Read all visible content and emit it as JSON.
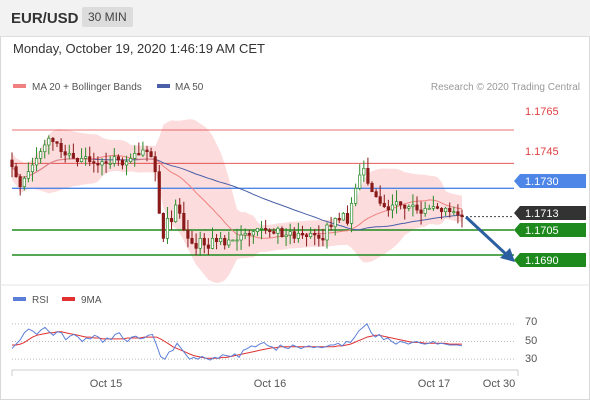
{
  "header": {
    "symbol": "EUR/USD",
    "timeframe": "30 MIN"
  },
  "datetime": "Monday, October 19, 2020 1:46:19 AM CET",
  "legend": {
    "ma20": "MA 20 + Bollinger Bands",
    "ma50": "MA 50",
    "copyright": "Research © 2020 Trading Central"
  },
  "colors": {
    "ma20": "#f08080",
    "ma50": "#4a5fa8",
    "band": "#fbd6d6",
    "blue_level": "#4e86e8",
    "green_level": "#1e8a1e",
    "red_level": "#e04040",
    "last_price": "#333333",
    "up_candle": "#2a8a2a",
    "down_candle": "#8a1a1a",
    "rsi": "#5b7fd8",
    "rsi_ma": "#e03030",
    "arrow": "#2c5fa0"
  },
  "price_tags": {
    "r1": "1.1765",
    "r2": "1.1745",
    "r3": "1.1730",
    "last": "1.1713",
    "s1": "1.1705",
    "s2": "1.1690"
  },
  "rsi_legend": {
    "rsi": "RSI",
    "ma": "9MA"
  },
  "rsi_ticks": [
    "70",
    "50",
    "30"
  ],
  "x_ticks": [
    "Oct 15",
    "Oct 16",
    "Oct 17",
    "Oct 30"
  ],
  "chart_data": {
    "type": "candlestick",
    "instrument": "EUR/USD",
    "timeframe": "30 MIN",
    "ylim": [
      1.1678,
      1.1786
    ],
    "levels": [
      {
        "value": 1.1765,
        "kind": "resistance"
      },
      {
        "value": 1.1745,
        "kind": "resistance"
      },
      {
        "value": 1.173,
        "kind": "pivot"
      },
      {
        "value": 1.1713,
        "kind": "last"
      },
      {
        "value": 1.1705,
        "kind": "support"
      },
      {
        "value": 1.169,
        "kind": "support"
      }
    ],
    "closes": [
      1.1743,
      1.1737,
      1.1731,
      1.1736,
      1.174,
      1.1744,
      1.1748,
      1.1752,
      1.1756,
      1.176,
      1.1758,
      1.1757,
      1.1752,
      1.175,
      1.1751,
      1.1748,
      1.1746,
      1.1748,
      1.1749,
      1.1746,
      1.1745,
      1.1744,
      1.1746,
      1.1745,
      1.1745,
      1.1749,
      1.1747,
      1.1744,
      1.1746,
      1.1748,
      1.1751,
      1.175,
      1.1753,
      1.1752,
      1.1749,
      1.174,
      1.1715,
      1.17,
      1.1712,
      1.171,
      1.172,
      1.1715,
      1.1705,
      1.17,
      1.1697,
      1.1694,
      1.17,
      1.1696,
      1.1694,
      1.17,
      1.1698,
      1.17,
      1.1696,
      1.1699,
      1.1699,
      1.1699,
      1.1702,
      1.1703,
      1.1702,
      1.1704,
      1.1706,
      1.1706,
      1.1705,
      1.1704,
      1.1703,
      1.1706,
      1.1701,
      1.1702,
      1.1704,
      1.17,
      1.1703,
      1.1702,
      1.1701,
      1.1703,
      1.1702,
      1.17,
      1.1699,
      1.1708,
      1.1707,
      1.1712,
      1.1711,
      1.1715,
      1.1709,
      1.1721,
      1.173,
      1.1738,
      1.1742,
      1.1733,
      1.1728,
      1.1725,
      1.1721,
      1.1719,
      1.1717,
      1.172,
      1.1722,
      1.172,
      1.1718,
      1.1719,
      1.172,
      1.1717,
      1.1715,
      1.1718,
      1.1718,
      1.1719,
      1.1718,
      1.1716,
      1.1718,
      1.1716,
      1.1716,
      1.1714,
      1.1713
    ],
    "ma20_end": 1.172,
    "ma50_end": 1.1716,
    "forecast_arrow": {
      "from": 1.1713,
      "to": 1.169
    },
    "x_labels": [
      "Oct 15",
      "Oct 16",
      "Oct 17",
      "Oct 30"
    ],
    "rsi": {
      "ylim": [
        20,
        80
      ],
      "ticks": [
        70,
        50,
        30
      ],
      "rsi_values": [
        42,
        47,
        52,
        60,
        64,
        62,
        58,
        63,
        66,
        61,
        57,
        61,
        60,
        52,
        56,
        58,
        55,
        50,
        54,
        53,
        57,
        55,
        49,
        54,
        52,
        58,
        60,
        53,
        50,
        55,
        56,
        53,
        54,
        57,
        58,
        46,
        33,
        30,
        38,
        40,
        48,
        42,
        36,
        30,
        32,
        30,
        33,
        31,
        29,
        32,
        31,
        35,
        34,
        33,
        36,
        32,
        40,
        42,
        45,
        44,
        47,
        49,
        45,
        44,
        40,
        46,
        43,
        42,
        46,
        44,
        42,
        44,
        45,
        43,
        44,
        43,
        44,
        46,
        46,
        48,
        45,
        50,
        49,
        55,
        62,
        66,
        70,
        60,
        55,
        58,
        52,
        54,
        50,
        47,
        50,
        49,
        47,
        49,
        50,
        48,
        47,
        48,
        50,
        47,
        48,
        47,
        46,
        46,
        46,
        45
      ],
      "ma_values": [
        46,
        46,
        47,
        49,
        52,
        55,
        57,
        58,
        59,
        60,
        60,
        61,
        61,
        60,
        59,
        58,
        57,
        56,
        55,
        55,
        54,
        54,
        53,
        53,
        53,
        53,
        53,
        53,
        54,
        54,
        54,
        54,
        55,
        55,
        55,
        55,
        53,
        50,
        47,
        44,
        42,
        40,
        38,
        36,
        34,
        33,
        32,
        31,
        31,
        31,
        31,
        32,
        32,
        33,
        34,
        35,
        36,
        37,
        38,
        39,
        40,
        41,
        42,
        43,
        43,
        44,
        44,
        44,
        44,
        44,
        44,
        44,
        44,
        44,
        44,
        44,
        44,
        44,
        44,
        45,
        45,
        46,
        47,
        49,
        51,
        53,
        55,
        56,
        57,
        57,
        56,
        55,
        54,
        53,
        52,
        51,
        50,
        49,
        49,
        49,
        48,
        48,
        48,
        48,
        48,
        48,
        47,
        47,
        47,
        47
      ]
    }
  }
}
